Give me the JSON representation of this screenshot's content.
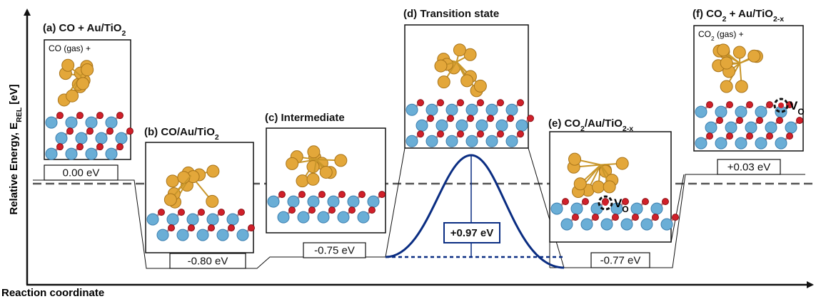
{
  "axes": {
    "y_label": [
      "Relative Energy, E",
      "REL",
      " [eV]"
    ],
    "x_label": "Reaction coordinate"
  },
  "panels": [
    {
      "title": [
        "(a) CO + Au/TiO",
        "2"
      ],
      "note": [
        "CO (gas) +"
      ]
    },
    {
      "title": [
        "(b) CO/Au/TiO",
        "2"
      ]
    },
    {
      "title": [
        "(c) Intermediate"
      ]
    },
    {
      "title": [
        "(d) Transition state"
      ]
    },
    {
      "title": [
        "(e) CO",
        "2",
        "/Au/TiO",
        "2-x"
      ],
      "vacancy": [
        "V",
        "O"
      ]
    },
    {
      "title": [
        "(f) CO",
        "2",
        " + Au/TiO",
        "2-x"
      ],
      "note": [
        "CO",
        "2",
        " (gas) +"
      ],
      "vacancy": [
        "V",
        "O"
      ]
    }
  ],
  "energies": [
    "0.00 eV",
    "-0.80 eV",
    "-0.75 eV",
    "+0.97 eV",
    "-0.77 eV",
    "+0.03 eV"
  ]
}
